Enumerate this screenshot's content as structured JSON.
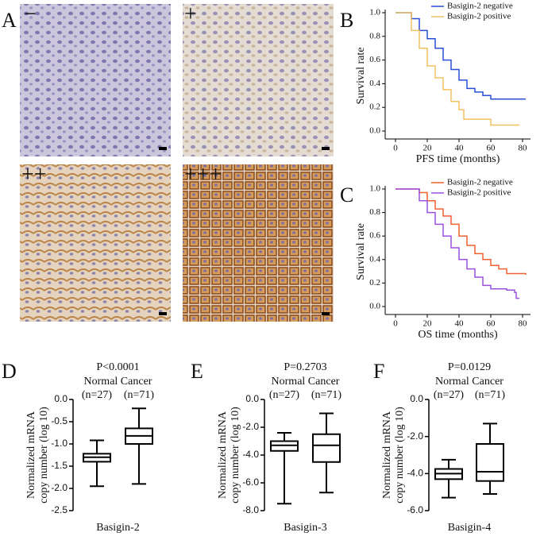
{
  "panel_labels": [
    "A",
    "B",
    "C",
    "D",
    "E",
    "F"
  ],
  "ihc_grades": [
    "−",
    "+",
    "++",
    "+++"
  ],
  "chart_data": [
    {
      "type": "line",
      "step": true,
      "xlabel": "PFS time (months)",
      "ylabel": "Survival rate",
      "xlim": [
        0,
        85
      ],
      "xticks": [
        0,
        20,
        40,
        60,
        80
      ],
      "ylim": [
        0,
        1
      ],
      "yticks": [
        {
          "value": 0,
          "label": "0.0"
        },
        0.2,
        0.4,
        0.6,
        0.8,
        {
          "value": 1,
          "label": "1.0"
        }
      ],
      "legend": "top-right",
      "series": [
        {
          "name": "Basigin-2 negative",
          "color": "#2a4fd6",
          "x": [
            0,
            5,
            10,
            15,
            20,
            25,
            30,
            35,
            40,
            45,
            50,
            55,
            60,
            82
          ],
          "values": [
            1,
            1,
            0.95,
            0.85,
            0.78,
            0.7,
            0.6,
            0.52,
            0.43,
            0.36,
            0.33,
            0.3,
            0.27,
            0.27
          ]
        },
        {
          "name": "Basigin-2 positive",
          "color": "#f0c060",
          "x": [
            0,
            4,
            10,
            15,
            20,
            25,
            30,
            35,
            40,
            43,
            50,
            55,
            60,
            78
          ],
          "values": [
            1,
            1,
            0.85,
            0.7,
            0.55,
            0.45,
            0.35,
            0.25,
            0.18,
            0.1,
            0.1,
            0.1,
            0.05,
            0.05
          ]
        }
      ]
    },
    {
      "type": "line",
      "step": true,
      "xlabel": "OS time (months)",
      "ylabel": "Survival rate",
      "xlim": [
        0,
        85
      ],
      "xticks": [
        0,
        20,
        40,
        60,
        80
      ],
      "ylim": [
        0,
        1
      ],
      "yticks": [
        {
          "value": 0,
          "label": "0.0"
        },
        0.2,
        0.4,
        0.6,
        0.8,
        {
          "value": 1,
          "label": "1.0"
        }
      ],
      "legend": "top-right",
      "series": [
        {
          "name": "Basigin-2 negative",
          "color": "#f06030",
          "x": [
            0,
            10,
            15,
            20,
            25,
            30,
            35,
            40,
            45,
            50,
            55,
            60,
            65,
            70,
            82
          ],
          "values": [
            1,
            1,
            0.97,
            0.9,
            0.83,
            0.77,
            0.7,
            0.6,
            0.52,
            0.45,
            0.4,
            0.35,
            0.32,
            0.28,
            0.27
          ]
        },
        {
          "name": "Basigin-2 positive",
          "color": "#9b50e0",
          "x": [
            0,
            8,
            15,
            20,
            25,
            30,
            35,
            40,
            45,
            50,
            55,
            60,
            70,
            75,
            76,
            78
          ],
          "values": [
            1,
            1,
            0.9,
            0.8,
            0.7,
            0.6,
            0.5,
            0.4,
            0.32,
            0.25,
            0.18,
            0.15,
            0.14,
            0.12,
            0.07,
            0.07
          ]
        }
      ]
    },
    {
      "type": "box",
      "annotation": "P<0.0001",
      "group_header": "Normal Cancer",
      "n_labels": [
        "(n=27)",
        "(n=71)"
      ],
      "ylabel_lines": [
        "Normalized mRNA",
        "copy number (log 10)"
      ],
      "xlabel": "Basigin-2",
      "ylim": [
        -2.5,
        0
      ],
      "yticks": [
        {
          "value": 0,
          "label": "0.0"
        },
        -0.5,
        {
          "value": -1,
          "label": "-1.0"
        },
        -1.5,
        {
          "value": -2,
          "label": "-2.0"
        },
        -2.5
      ],
      "categories": [
        "Normal",
        "Cancer"
      ],
      "min": [
        -1.95,
        -1.9
      ],
      "q1": [
        -1.4,
        -1.0
      ],
      "median": [
        -1.3,
        -0.82
      ],
      "q3": [
        -1.22,
        -0.65
      ],
      "max": [
        -0.92,
        -0.2
      ]
    },
    {
      "type": "box",
      "annotation": "P=0.2703",
      "group_header": "Normal Cancer",
      "n_labels": [
        "(n=27)",
        "(n=71)"
      ],
      "ylabel_lines": [
        "Normalized mRNA",
        "copy number (log 10)"
      ],
      "xlabel": "Basigin-3",
      "ylim": [
        -8,
        0
      ],
      "yticks": [
        {
          "value": 0,
          "label": "0.0"
        },
        {
          "value": -2,
          "label": "-2.0"
        },
        {
          "value": -4,
          "label": "-4.0"
        },
        {
          "value": -6,
          "label": "-6.0"
        },
        {
          "value": -8,
          "label": "-8.0"
        }
      ],
      "categories": [
        "Normal",
        "Cancer"
      ],
      "min": [
        -7.5,
        -6.7
      ],
      "q1": [
        -3.7,
        -4.5
      ],
      "median": [
        -3.3,
        -3.3
      ],
      "q3": [
        -3.0,
        -2.5
      ],
      "max": [
        -2.4,
        -1.0
      ]
    },
    {
      "type": "box",
      "annotation": "P=0.0129",
      "group_header": "Normal Cancer",
      "n_labels": [
        "(n=27)",
        "(n=71)"
      ],
      "ylabel_lines": [
        "Normalized mRNA",
        "copy number (log 10)"
      ],
      "xlabel": "Basigin-4",
      "ylim": [
        -6,
        0
      ],
      "yticks": [
        {
          "value": 0,
          "label": "0.0"
        },
        {
          "value": -2,
          "label": "-2.0"
        },
        {
          "value": -4,
          "label": "-4.0"
        },
        {
          "value": -6,
          "label": "-6.0"
        }
      ],
      "categories": [
        "Normal",
        "Cancer"
      ],
      "min": [
        -5.3,
        -5.1
      ],
      "q1": [
        -4.3,
        -4.4
      ],
      "median": [
        -4.0,
        -3.9
      ],
      "q3": [
        -3.75,
        -2.4
      ],
      "max": [
        -3.25,
        -1.3
      ]
    }
  ]
}
